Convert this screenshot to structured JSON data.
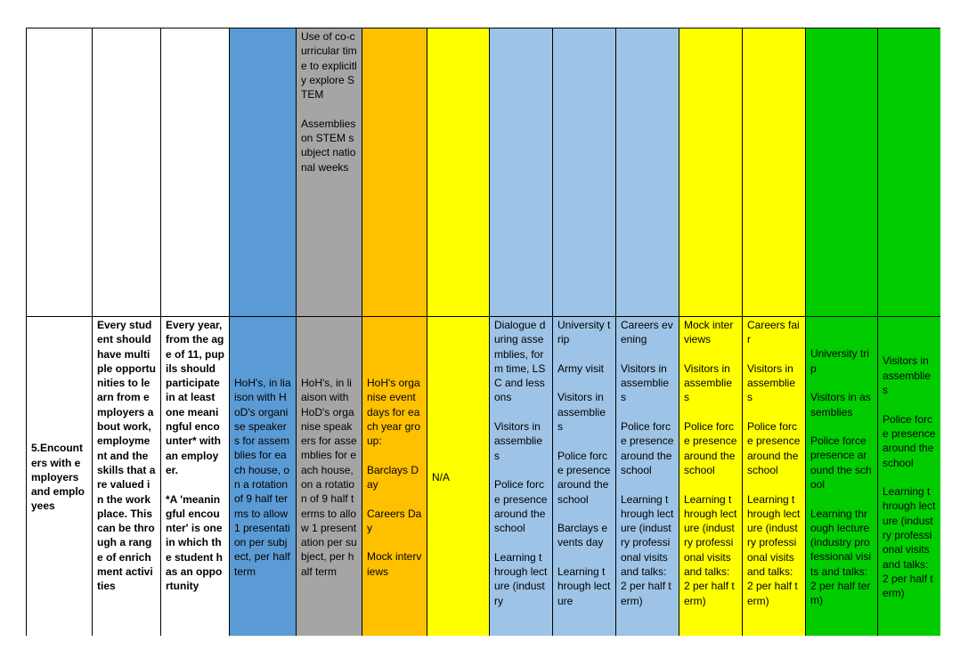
{
  "colors": {
    "c4": "#5b9bd5",
    "c5": "#a5a5a5",
    "c6": "#ffc000",
    "c7": "#ffff00",
    "c8": "#9dc3e6",
    "c9": "#9dc3e6",
    "c10": "#9dc3e6",
    "c11": "#ffff00",
    "c12": "#ffff00",
    "c13": "#00cc00",
    "c14": "#00cc00"
  },
  "rows": [
    {
      "id": "row-top",
      "cells": [
        {
          "paras": [],
          "valign": "top"
        },
        {
          "paras": [],
          "valign": "top"
        },
        {
          "paras": [],
          "valign": "top"
        },
        {
          "paras": [],
          "valign": "top",
          "color": "c4"
        },
        {
          "paras": [
            "Use of co-curricular time to explicitly explore STEM",
            "Assemblies on STEM subject national weeks"
          ],
          "valign": "top",
          "color": "c5"
        },
        {
          "paras": [],
          "valign": "top",
          "color": "c6"
        },
        {
          "paras": [],
          "valign": "top",
          "color": "c7"
        },
        {
          "paras": [],
          "valign": "top",
          "color": "c8"
        },
        {
          "paras": [],
          "valign": "top",
          "color": "c9"
        },
        {
          "paras": [],
          "valign": "top",
          "color": "c10"
        },
        {
          "paras": [],
          "valign": "top",
          "color": "c11"
        },
        {
          "paras": [],
          "valign": "top",
          "color": "c12"
        },
        {
          "paras": [],
          "valign": "top",
          "color": "c13"
        },
        {
          "paras": [],
          "valign": "top",
          "color": "c14"
        }
      ]
    },
    {
      "id": "row-encounters",
      "cells": [
        {
          "paras": [
            "5.Encounters with employers and employees"
          ],
          "valign": "mid",
          "bold": true
        },
        {
          "paras": [
            "Every student should have multiple opportunities to learn from employers about work, employment and the skills that are valued in the workplace. This can be through a range of enrichment activities"
          ],
          "valign": "top",
          "bold": true
        },
        {
          "paras": [
            "Every year, from the age of 11, pupils should participate in at least one meaningful encounter* with an employer.",
            "*A 'meaningful encounter' is one in which the student has an opportunity"
          ],
          "valign": "top",
          "bold": true
        },
        {
          "paras": [
            "HoH's, in liaison with HoD's organise speakers for assemblies for each house, on a rotation of 9 half terms to allow 1 presentation per subject, per half term"
          ],
          "valign": "mid",
          "color": "c4"
        },
        {
          "paras": [
            "HoH's, in liaison with HoD's organise speakers for assemblies for each house, on a rotation of 9 half terms to allow 1 presentation per subject, per half term"
          ],
          "valign": "mid",
          "color": "c5"
        },
        {
          "paras": [
            "HoH's organise event days for each year group:",
            "Barclays Day",
            "Careers Day",
            "Mock interviews"
          ],
          "valign": "mid",
          "color": "c6"
        },
        {
          "paras": [
            "N/A"
          ],
          "valign": "mid",
          "color": "c7"
        },
        {
          "paras": [
            "Dialogue during assemblies, form time, LSC and lessons",
            "Visitors in assemblies",
            "Police force presence around the school",
            "Learning through lecture (industry"
          ],
          "valign": "top",
          "color": "c8"
        },
        {
          "paras": [
            "University trip",
            "Army visit",
            "Visitors in assemblies",
            "Police force presence around the school",
            "Barclays events day",
            "Learning through lecture"
          ],
          "valign": "top",
          "color": "c9"
        },
        {
          "paras": [
            "Careers evening",
            "Visitors in assemblies",
            "Police force presence around the school",
            "Learning through lecture (industry professional visits and talks: 2 per half term)"
          ],
          "valign": "top",
          "color": "c10"
        },
        {
          "paras": [
            "Mock interviews",
            "Visitors in assemblies",
            "Police force presence around the school",
            "Learning through lecture (industry professional visits and talks: 2 per half term)"
          ],
          "valign": "top",
          "color": "c11"
        },
        {
          "paras": [
            "Careers fair",
            "Visitors in assemblies",
            "Police force presence around the school",
            "Learning through lecture (industry professional visits and talks: 2 per half term)"
          ],
          "valign": "top",
          "color": "c12"
        },
        {
          "paras": [
            "University trip",
            "Visitors in assemblies",
            "Police force presence around the school",
            "Learning through lecture (industry professional visits and talks: 2 per half term)"
          ],
          "valign": "mid",
          "color": "c13"
        },
        {
          "paras": [
            "Visitors in assemblies",
            "Police force presence around the school",
            "Learning through lecture (industry professional visits and talks: 2 per half term)"
          ],
          "valign": "mid",
          "color": "c14"
        }
      ]
    }
  ]
}
